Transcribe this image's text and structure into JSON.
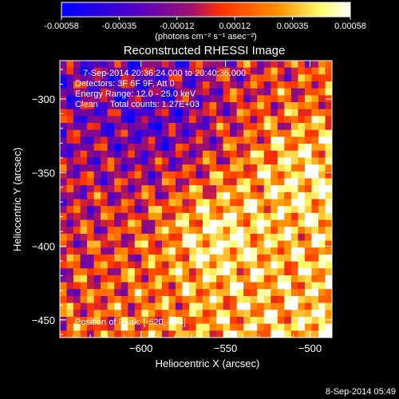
{
  "chart_data": {
    "type": "heatmap",
    "title": "Reconstructed RHESSI Image",
    "xlabel": "Heliocentric X (arcsec)",
    "ylabel": "Heliocentric Y (arcsec)",
    "xlim": [
      -648,
      -487
    ],
    "ylim": [
      -462,
      -274
    ],
    "xticks": [
      -600,
      -550,
      -500
    ],
    "yticks": [
      -300,
      -350,
      -400,
      -450
    ],
    "colorbar": {
      "ticks": [
        "-0.00058",
        "-0.00035",
        "-0.00012",
        "0.00012",
        "0.00035",
        "0.00058"
      ],
      "label": "(photons cm⁻² s⁻¹ asec⁻²)",
      "range": [
        -0.00058,
        0.00058
      ],
      "colors": [
        "#0000ff",
        "#5000c8",
        "#a01070",
        "#ff3000",
        "#ff9000",
        "#ffff70",
        "#ffffff"
      ]
    },
    "annotations": {
      "time": "7-Sep-2014 20:36:24.000 to 20:40:36.000",
      "detectors": "Detectors: 3F 6F 9F, Att 0",
      "energy": "Energy Range: 12.0 - 25.0 keV",
      "method": "Clean     Total counts: 1.27E+03",
      "peak": "Position of Peak: [-620,-398]"
    },
    "timestamp": "8-Sep-2014 05:49"
  }
}
